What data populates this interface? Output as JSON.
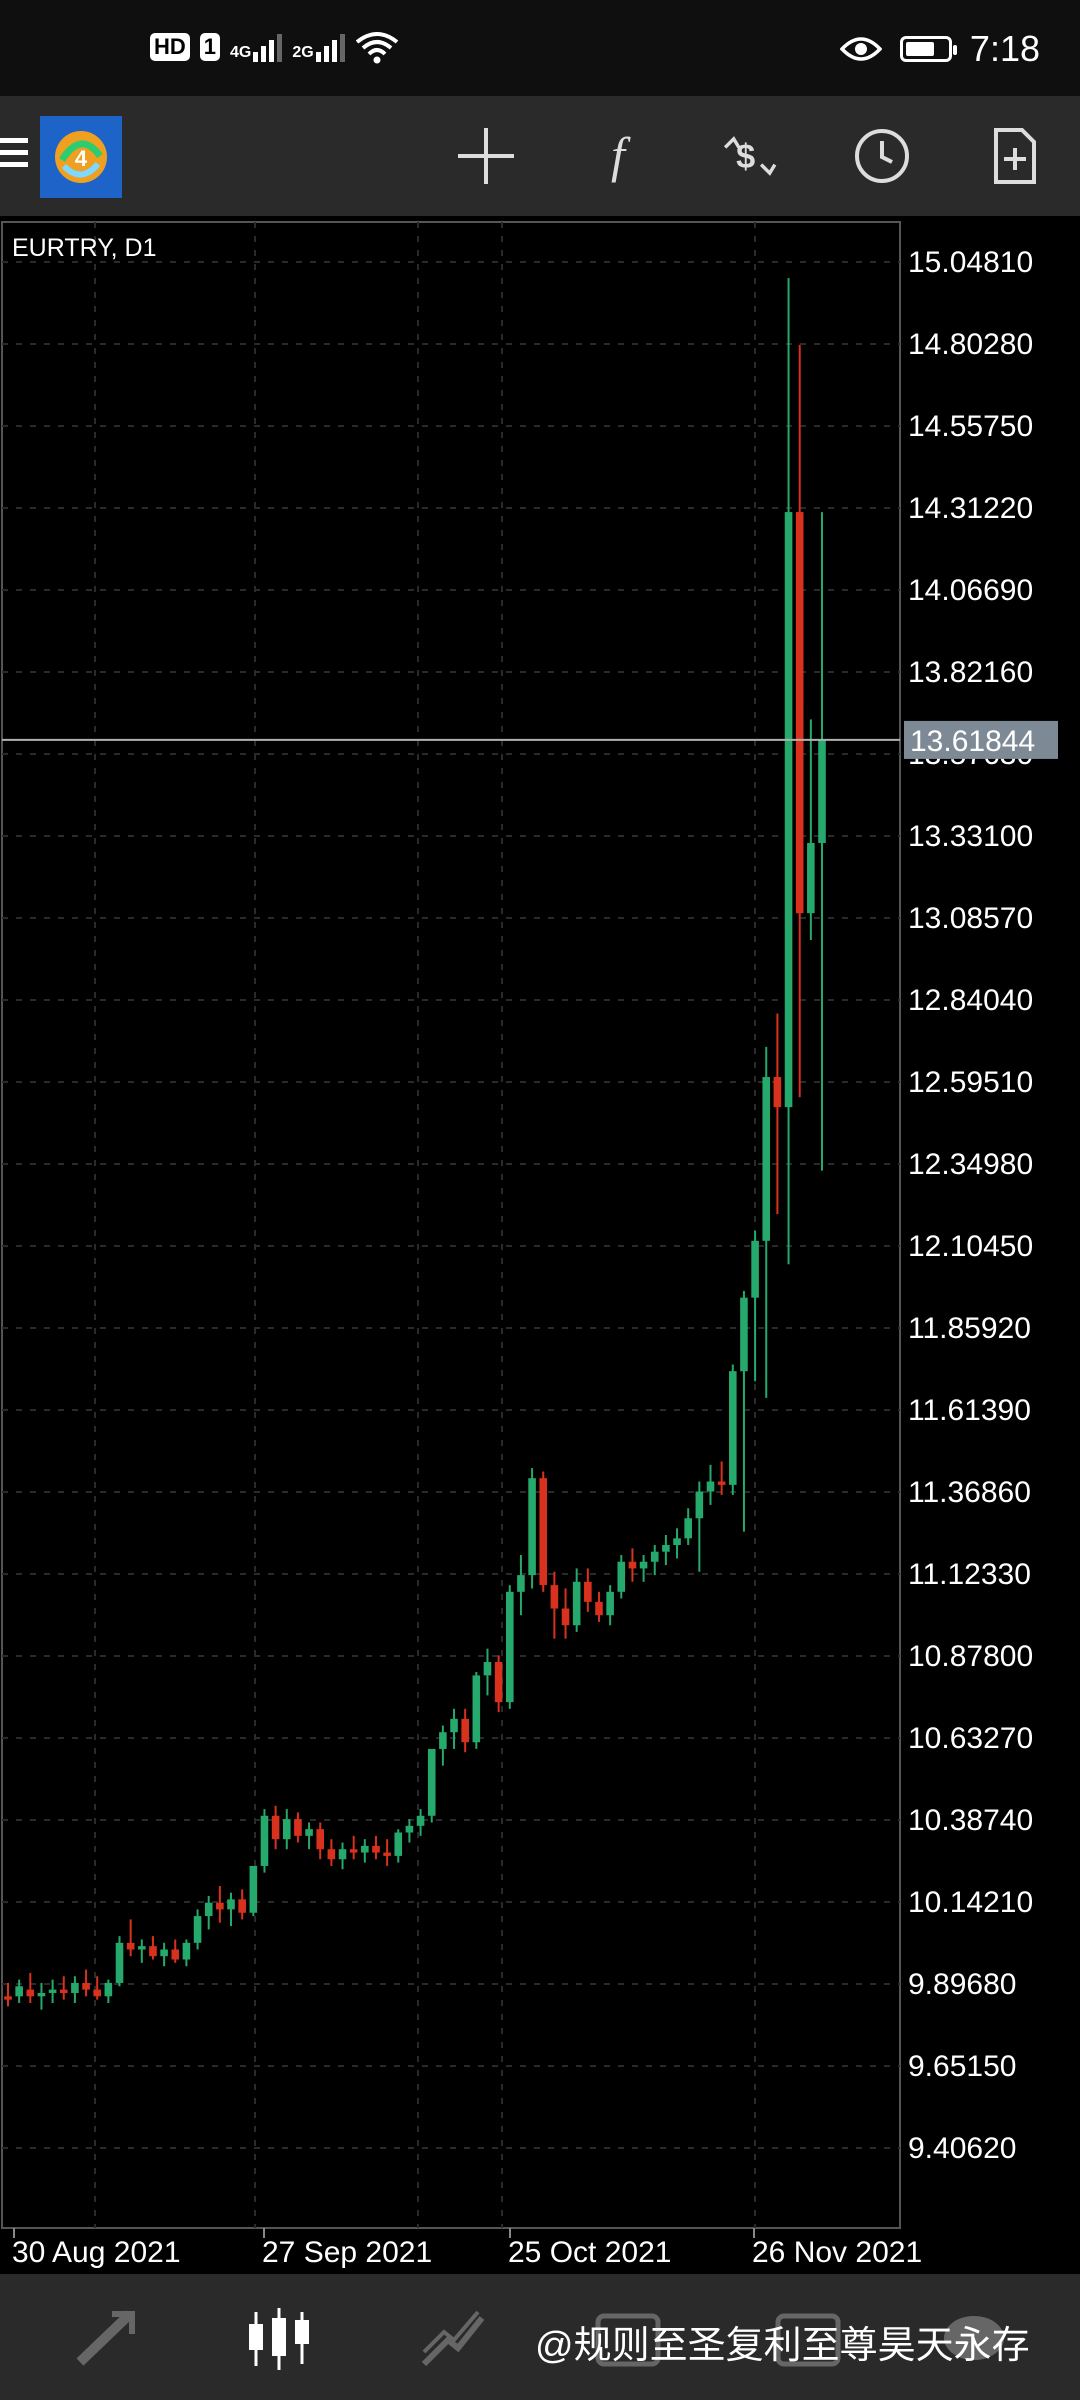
{
  "status_bar": {
    "badge_hd": "HD",
    "badge_sim": "1",
    "net1": "4G",
    "net2": "2G",
    "time": "7:18"
  },
  "toolbar": {
    "icons": [
      "menu-icon",
      "app-logo",
      "crosshair-icon",
      "indicator-function-icon",
      "trade-icon",
      "clock-icon",
      "new-order-icon"
    ]
  },
  "chart": {
    "symbol_label": "EURTRY, D1",
    "current_price": "13.61844",
    "colors": {
      "bull": "#26a96c",
      "bear": "#d8321e",
      "grid": "#2a2a2a",
      "price_line": "#b0b0b0",
      "price_tag_bg": "#7d8a96"
    }
  },
  "chart_data": {
    "type": "candlestick",
    "title": "EURTRY, D1",
    "y_ticks": [
      "15.04810",
      "14.80280",
      "14.55750",
      "14.31220",
      "14.06690",
      "13.82160",
      "13.57630",
      "13.33100",
      "13.08570",
      "12.84040",
      "12.59510",
      "12.34980",
      "12.10450",
      "11.85920",
      "11.61390",
      "11.36860",
      "11.12330",
      "10.87800",
      "10.63270",
      "10.38740",
      "10.14210",
      "9.89680",
      "9.65150",
      "9.40620"
    ],
    "x_ticks": [
      "30 Aug 2021",
      "27 Sep 2021",
      "25 Oct 2021",
      "26 Nov 2021"
    ],
    "ylim": [
      9.2,
      15.14
    ],
    "current_price": 13.61844,
    "candles": [
      {
        "o": 9.86,
        "h": 9.9,
        "l": 9.83,
        "c": 9.85
      },
      {
        "o": 9.86,
        "h": 9.91,
        "l": 9.84,
        "c": 9.89
      },
      {
        "o": 9.88,
        "h": 9.93,
        "l": 9.84,
        "c": 9.86
      },
      {
        "o": 9.86,
        "h": 9.9,
        "l": 9.82,
        "c": 9.87
      },
      {
        "o": 9.87,
        "h": 9.91,
        "l": 9.84,
        "c": 9.88
      },
      {
        "o": 9.88,
        "h": 9.92,
        "l": 9.85,
        "c": 9.87
      },
      {
        "o": 9.87,
        "h": 9.92,
        "l": 9.84,
        "c": 9.9
      },
      {
        "o": 9.9,
        "h": 9.94,
        "l": 9.86,
        "c": 9.88
      },
      {
        "o": 9.88,
        "h": 9.92,
        "l": 9.85,
        "c": 9.86
      },
      {
        "o": 9.86,
        "h": 9.91,
        "l": 9.84,
        "c": 9.9
      },
      {
        "o": 9.9,
        "h": 10.04,
        "l": 9.89,
        "c": 10.02
      },
      {
        "o": 10.02,
        "h": 10.09,
        "l": 9.98,
        "c": 10.0
      },
      {
        "o": 10.0,
        "h": 10.03,
        "l": 9.96,
        "c": 10.01
      },
      {
        "o": 10.01,
        "h": 10.04,
        "l": 9.97,
        "c": 9.98
      },
      {
        "o": 9.98,
        "h": 10.02,
        "l": 9.95,
        "c": 10.0
      },
      {
        "o": 10.0,
        "h": 10.03,
        "l": 9.96,
        "c": 9.97
      },
      {
        "o": 9.97,
        "h": 10.03,
        "l": 9.95,
        "c": 10.02
      },
      {
        "o": 10.02,
        "h": 10.12,
        "l": 10.0,
        "c": 10.1
      },
      {
        "o": 10.1,
        "h": 10.16,
        "l": 10.06,
        "c": 10.14
      },
      {
        "o": 10.14,
        "h": 10.19,
        "l": 10.08,
        "c": 10.12
      },
      {
        "o": 10.12,
        "h": 10.17,
        "l": 10.07,
        "c": 10.15
      },
      {
        "o": 10.15,
        "h": 10.18,
        "l": 10.09,
        "c": 10.11
      },
      {
        "o": 10.11,
        "h": 10.22,
        "l": 10.1,
        "c": 10.25
      },
      {
        "o": 10.25,
        "h": 10.42,
        "l": 10.23,
        "c": 10.4
      },
      {
        "o": 10.4,
        "h": 10.43,
        "l": 10.3,
        "c": 10.33
      },
      {
        "o": 10.33,
        "h": 10.42,
        "l": 10.3,
        "c": 10.39
      },
      {
        "o": 10.39,
        "h": 10.41,
        "l": 10.32,
        "c": 10.34
      },
      {
        "o": 10.34,
        "h": 10.38,
        "l": 10.3,
        "c": 10.36
      },
      {
        "o": 10.36,
        "h": 10.38,
        "l": 10.27,
        "c": 10.3
      },
      {
        "o": 10.3,
        "h": 10.33,
        "l": 10.25,
        "c": 10.27
      },
      {
        "o": 10.27,
        "h": 10.32,
        "l": 10.24,
        "c": 10.3
      },
      {
        "o": 10.3,
        "h": 10.34,
        "l": 10.27,
        "c": 10.29
      },
      {
        "o": 10.29,
        "h": 10.33,
        "l": 10.26,
        "c": 10.31
      },
      {
        "o": 10.31,
        "h": 10.34,
        "l": 10.27,
        "c": 10.29
      },
      {
        "o": 10.29,
        "h": 10.33,
        "l": 10.25,
        "c": 10.28
      },
      {
        "o": 10.28,
        "h": 10.36,
        "l": 10.26,
        "c": 10.35
      },
      {
        "o": 10.35,
        "h": 10.39,
        "l": 10.32,
        "c": 10.37
      },
      {
        "o": 10.37,
        "h": 10.42,
        "l": 10.34,
        "c": 10.4
      },
      {
        "o": 10.4,
        "h": 10.58,
        "l": 10.38,
        "c": 10.6
      },
      {
        "o": 10.6,
        "h": 10.67,
        "l": 10.55,
        "c": 10.65
      },
      {
        "o": 10.65,
        "h": 10.72,
        "l": 10.6,
        "c": 10.69
      },
      {
        "o": 10.69,
        "h": 10.72,
        "l": 10.59,
        "c": 10.62
      },
      {
        "o": 10.62,
        "h": 10.83,
        "l": 10.6,
        "c": 10.82
      },
      {
        "o": 10.82,
        "h": 10.9,
        "l": 10.76,
        "c": 10.86
      },
      {
        "o": 10.86,
        "h": 10.88,
        "l": 10.71,
        "c": 10.74
      },
      {
        "o": 10.74,
        "h": 11.09,
        "l": 10.72,
        "c": 11.07
      },
      {
        "o": 11.07,
        "h": 11.18,
        "l": 11.0,
        "c": 11.12
      },
      {
        "o": 11.12,
        "h": 11.44,
        "l": 11.08,
        "c": 11.41
      },
      {
        "o": 11.41,
        "h": 11.43,
        "l": 11.07,
        "c": 11.09
      },
      {
        "o": 11.09,
        "h": 11.13,
        "l": 10.93,
        "c": 11.02
      },
      {
        "o": 11.02,
        "h": 11.08,
        "l": 10.93,
        "c": 10.97
      },
      {
        "o": 10.97,
        "h": 11.14,
        "l": 10.95,
        "c": 11.1
      },
      {
        "o": 11.1,
        "h": 11.14,
        "l": 11.01,
        "c": 11.04
      },
      {
        "o": 11.04,
        "h": 11.07,
        "l": 10.98,
        "c": 11.0
      },
      {
        "o": 11.0,
        "h": 11.09,
        "l": 10.97,
        "c": 11.07
      },
      {
        "o": 11.07,
        "h": 11.18,
        "l": 11.05,
        "c": 11.16
      },
      {
        "o": 11.16,
        "h": 11.2,
        "l": 11.1,
        "c": 11.14
      },
      {
        "o": 11.14,
        "h": 11.18,
        "l": 11.1,
        "c": 11.16
      },
      {
        "o": 11.16,
        "h": 11.21,
        "l": 11.12,
        "c": 11.19
      },
      {
        "o": 11.19,
        "h": 11.24,
        "l": 11.15,
        "c": 11.21
      },
      {
        "o": 11.21,
        "h": 11.26,
        "l": 11.17,
        "c": 11.23
      },
      {
        "o": 11.23,
        "h": 11.32,
        "l": 11.21,
        "c": 11.29
      },
      {
        "o": 11.29,
        "h": 11.4,
        "l": 11.13,
        "c": 11.37
      },
      {
        "o": 11.37,
        "h": 11.45,
        "l": 11.33,
        "c": 11.4
      },
      {
        "o": 11.4,
        "h": 11.46,
        "l": 11.36,
        "c": 11.39
      },
      {
        "o": 11.39,
        "h": 11.75,
        "l": 11.36,
        "c": 11.73
      },
      {
        "o": 11.73,
        "h": 11.97,
        "l": 11.25,
        "c": 11.95
      },
      {
        "o": 11.95,
        "h": 12.15,
        "l": 11.7,
        "c": 12.12
      },
      {
        "o": 12.12,
        "h": 12.7,
        "l": 11.65,
        "c": 12.61
      },
      {
        "o": 12.61,
        "h": 12.8,
        "l": 12.2,
        "c": 12.52
      },
      {
        "o": 12.52,
        "h": 15.0,
        "l": 12.05,
        "c": 14.3
      },
      {
        "o": 14.3,
        "h": 14.8,
        "l": 12.55,
        "c": 13.1
      },
      {
        "o": 13.1,
        "h": 13.68,
        "l": 13.02,
        "c": 13.31
      },
      {
        "o": 13.31,
        "h": 14.3,
        "l": 12.33,
        "c": 13.62
      }
    ]
  },
  "bottom_bar": {
    "watermark": "@规则至圣复利至尊昊天永存"
  }
}
